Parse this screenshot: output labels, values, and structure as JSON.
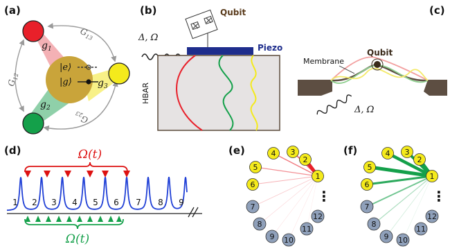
{
  "panels": {
    "a": {
      "label": "(a)",
      "g1": "g",
      "g1_sub": "1",
      "g2": "g",
      "g2_sub": "2",
      "g3": "g",
      "g3_sub": "3",
      "G12": "G",
      "G12_sub": "12",
      "G13": "G",
      "G13_sub": "13",
      "G23": "G",
      "G23_sub": "23",
      "ket_e": "|e⟩",
      "ket_g": "|g⟩",
      "colors": {
        "red": "#e8202a",
        "green": "#14a04a",
        "yellow": "#f4ea1c",
        "core": "#c9a43a"
      }
    },
    "b": {
      "label": "(b)",
      "qubit": "Qubit",
      "piezo": "Piezo",
      "hbar": "HBAR",
      "drive": "Δ, Ω"
    },
    "c": {
      "label": "(c)",
      "membrane": "Membrane",
      "qubit": "Qubit",
      "drive": "Δ, Ω"
    },
    "d": {
      "label": "(d)",
      "omega_red": "Ω(t)",
      "omega_green": "Ω(t)",
      "modes": [
        "1",
        "2",
        "3",
        "4",
        "5",
        "6",
        "7",
        "8",
        "9"
      ]
    },
    "e": {
      "label": "(e)",
      "dots": "⋮",
      "nodes": [
        "1",
        "2",
        "3",
        "4",
        "5",
        "6",
        "7",
        "8",
        "9",
        "10",
        "11",
        "12"
      ]
    },
    "f": {
      "label": "(f)",
      "dots": "⋮",
      "nodes": [
        "1",
        "2",
        "3",
        "4",
        "5",
        "6",
        "7",
        "8",
        "9",
        "10",
        "11",
        "12"
      ]
    }
  }
}
